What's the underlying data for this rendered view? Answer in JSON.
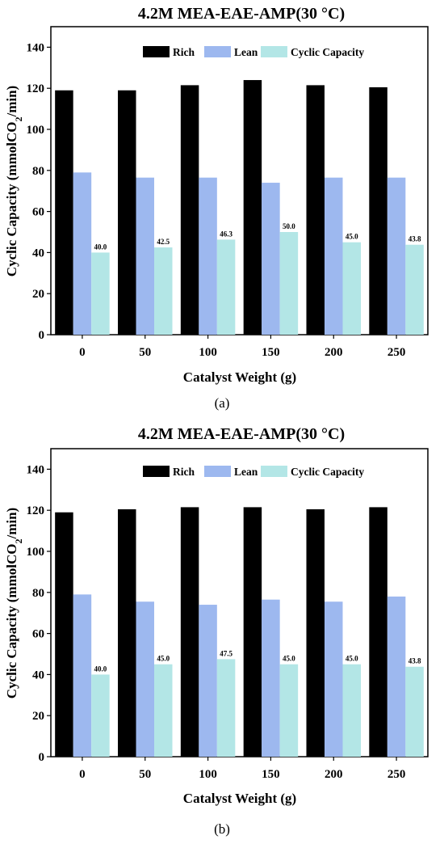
{
  "chart_data": [
    {
      "type": "bar",
      "title": "4.2M MEA-EAE-AMP(30 °C)",
      "xlabel": "Catalyst  Weight (g)",
      "ylabel_prefix": "Cyclic Capacity (mmolCO",
      "ylabel_sub": "2",
      "ylabel_suffix": "/min)",
      "caption": "(a)",
      "categories": [
        "0",
        "50",
        "100",
        "150",
        "200",
        "250"
      ],
      "ylim": [
        0,
        150
      ],
      "yticks": [
        0,
        20,
        40,
        60,
        80,
        100,
        120,
        140
      ],
      "legend_position": "top",
      "series": [
        {
          "name": "Rich",
          "color": "#000000",
          "values": [
            119,
            119,
            121.5,
            124,
            121.5,
            120.5
          ]
        },
        {
          "name": "Lean",
          "color": "#9db8ef",
          "values": [
            79,
            76.5,
            76.5,
            74,
            76.5,
            76.5
          ]
        },
        {
          "name": "Cyclic Capacity",
          "color": "#b3e6e6",
          "values": [
            40.0,
            42.5,
            46.3,
            50.0,
            45.0,
            43.8
          ],
          "labels": [
            "40.0",
            "42.5",
            "46.3",
            "50.0",
            "45.0",
            "43.8"
          ]
        }
      ]
    },
    {
      "type": "bar",
      "title": "4.2M MEA-EAE-AMP(30 °C)",
      "xlabel": "Catalyst  Weight (g)",
      "ylabel_prefix": "Cyclic Capacity (mmolCO",
      "ylabel_sub": "2",
      "ylabel_suffix": "/min)",
      "caption": "(b)",
      "categories": [
        "0",
        "50",
        "100",
        "150",
        "200",
        "250"
      ],
      "ylim": [
        0,
        150
      ],
      "yticks": [
        0,
        20,
        40,
        60,
        80,
        100,
        120,
        140
      ],
      "legend_position": "top",
      "series": [
        {
          "name": "Rich",
          "color": "#000000",
          "values": [
            119,
            120.5,
            121.5,
            121.5,
            120.5,
            121.5
          ]
        },
        {
          "name": "Lean",
          "color": "#9db8ef",
          "values": [
            79,
            75.5,
            74,
            76.5,
            75.5,
            78
          ]
        },
        {
          "name": "Cyclic Capacity",
          "color": "#b3e6e6",
          "values": [
            40.0,
            45.0,
            47.5,
            45.0,
            45.0,
            43.8
          ],
          "labels": [
            "40.0",
            "45.0",
            "47.5",
            "45.0",
            "45.0",
            "43.8"
          ]
        }
      ]
    }
  ]
}
